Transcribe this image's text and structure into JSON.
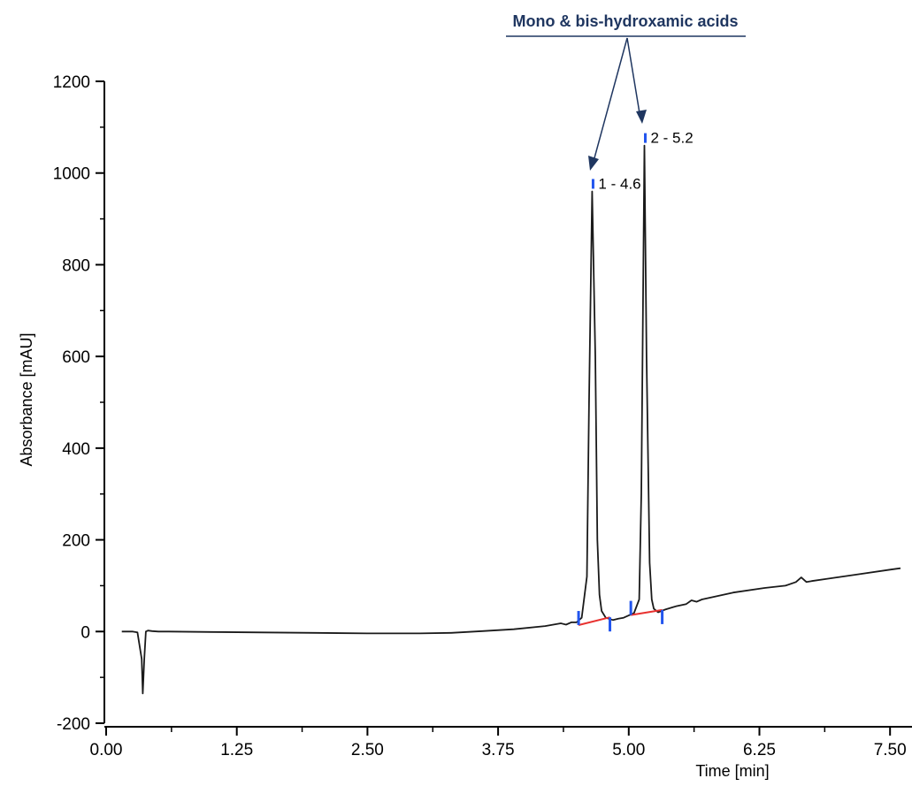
{
  "chart_data": {
    "type": "line",
    "title": "",
    "xlabel": "Time [min]",
    "ylabel": "Absorbance [mAU]",
    "xlim": [
      0.0,
      7.6
    ],
    "ylim": [
      -200,
      1200
    ],
    "x_ticks": [
      0.0,
      1.25,
      2.5,
      3.75,
      5.0,
      6.25,
      7.5
    ],
    "x_tick_labels": [
      "0.00",
      "1.25",
      "2.50",
      "3.75",
      "5.00",
      "6.25",
      "7.50"
    ],
    "y_ticks": [
      -200,
      0,
      200,
      400,
      600,
      800,
      1000,
      1200
    ],
    "y_tick_labels": [
      "-200",
      "0",
      "200",
      "400",
      "600",
      "800",
      "1000",
      "1200"
    ],
    "grid": false,
    "series": [
      {
        "x": [
          0.15,
          0.25,
          0.3,
          0.34,
          0.35,
          0.365,
          0.38,
          0.4,
          0.44,
          0.5,
          0.6,
          1.0,
          1.5,
          2.0,
          2.5,
          3.0,
          3.3,
          3.6,
          3.9,
          4.2,
          4.35,
          4.4,
          4.45,
          4.5,
          4.55,
          4.6,
          4.62,
          4.65,
          4.68,
          4.7,
          4.72,
          4.74,
          4.78,
          4.85,
          4.9,
          4.95,
          5.0,
          5.05,
          5.1,
          5.12,
          5.15,
          5.17,
          5.2,
          5.22,
          5.24,
          5.28,
          5.35,
          5.45,
          5.55,
          5.6,
          5.65,
          5.7,
          6.0,
          6.3,
          6.5,
          6.6,
          6.65,
          6.7,
          6.75,
          6.9,
          7.2,
          7.5,
          7.6
        ],
        "y": [
          0,
          0,
          -2,
          -60,
          -135,
          -60,
          0,
          2,
          1,
          0,
          0,
          -1,
          -2,
          -3,
          -4,
          -4,
          -3,
          1,
          5,
          12,
          18,
          15,
          20,
          20,
          30,
          120,
          500,
          960,
          600,
          200,
          80,
          45,
          30,
          25,
          28,
          30,
          35,
          40,
          70,
          300,
          1060,
          600,
          150,
          70,
          50,
          42,
          48,
          55,
          60,
          68,
          65,
          70,
          85,
          95,
          100,
          108,
          118,
          108,
          110,
          115,
          125,
          135,
          138
        ]
      },
      {
        "x": [
          4.52,
          4.82
        ],
        "y": [
          14,
          31
        ]
      },
      {
        "x": [
          5.02,
          5.32
        ],
        "y": [
          36,
          47
        ]
      }
    ],
    "peaks": [
      {
        "label": "1 - 4.6",
        "x": 4.65,
        "y": 960
      },
      {
        "label": "2 - 5.2",
        "x": 5.15,
        "y": 1060
      }
    ],
    "integration_marks": [
      {
        "x": 4.52,
        "y": 14
      },
      {
        "x": 4.82,
        "y": 31
      },
      {
        "x": 5.02,
        "y": 36
      },
      {
        "x": 5.32,
        "y": 47
      }
    ],
    "annotation": {
      "text": "Mono & bis-hydroxamic acids"
    },
    "colors": {
      "trace": "#1a1a1a",
      "baseline": "#e8312f",
      "marker": "#2255ee",
      "annotation": "#1f3660",
      "axis": "#000000"
    }
  }
}
